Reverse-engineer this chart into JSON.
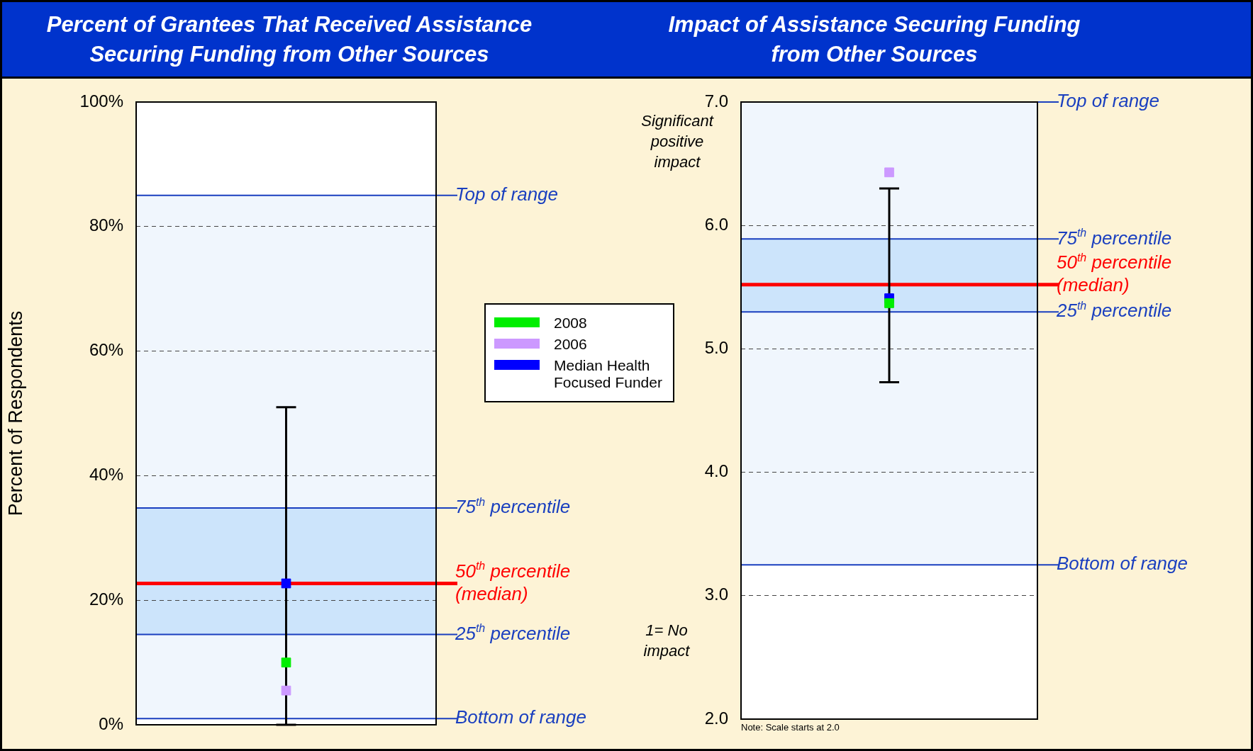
{
  "chart_data": [
    {
      "type": "scatter",
      "title": "Percent of Grantees That Received Assistance Securing Funding from Other Sources",
      "ylabel": "Percent of Respondents",
      "categories": [
        null
      ],
      "series": [
        {
          "type": "scatter",
          "name": "2008",
          "color": "#00ee00",
          "values": [
            10
          ],
          "errors": [
            [
              0,
              51
            ]
          ]
        },
        {
          "type": "scatter",
          "name": "2006",
          "color": "#cc99ff",
          "values": [
            5.5
          ]
        },
        {
          "type": "scatter",
          "name": "Median Health Focused Funder",
          "color": "#0000ff",
          "values": [
            22.7
          ]
        }
      ],
      "bands": [
        {
          "axis": "y",
          "from": 1,
          "to": 85,
          "color": "#f0f6fd"
        },
        {
          "axis": "y",
          "from": 14.5,
          "to": 34.8,
          "color": "#cce4fb"
        }
      ],
      "ref_lines": [
        {
          "axis": "y",
          "value": 85,
          "label": "Top of range",
          "color": "#1a3fbf"
        },
        {
          "axis": "y",
          "value": 34.8,
          "label": "75$^{th}$ percentile",
          "color": "#1a3fbf"
        },
        {
          "axis": "y",
          "value": 22.7,
          "label": "50$^{th}$ percentile (median)",
          "color": "#ff0000"
        },
        {
          "axis": "y",
          "value": 14.5,
          "label": "25$^{th}$ percentile",
          "color": "#1a3fbf"
        },
        {
          "axis": "y",
          "value": 1,
          "label": "Bottom of range",
          "color": "#1a3fbf"
        }
      ],
      "ylim": [
        0,
        100
      ],
      "yticks": [
        {
          "value": 0,
          "label": "0%"
        },
        {
          "value": 20,
          "label": "20%"
        },
        {
          "value": 40,
          "label": "40%"
        },
        {
          "value": 60,
          "label": "60%"
        },
        {
          "value": 80,
          "label": "80%"
        },
        {
          "value": 100,
          "label": "100%"
        }
      ],
      "grid": "y",
      "legend": "right",
      "marker": "square"
    },
    {
      "type": "scatter",
      "title": "Impact of Assistance Securing Funding from Other Sources",
      "categories": [
        null
      ],
      "series": [
        {
          "type": "scatter",
          "color": "#00ee00",
          "values": [
            5.37
          ],
          "errors": [
            [
              4.73,
              6.3
            ]
          ]
        },
        {
          "type": "scatter",
          "color": "#cc99ff",
          "values": [
            6.43
          ]
        },
        {
          "type": "scatter",
          "color": "#0000ff",
          "values": [
            5.41
          ]
        }
      ],
      "bands": [
        {
          "axis": "y",
          "from": 3.25,
          "to": 7.0,
          "color": "#f0f6fd"
        },
        {
          "axis": "y",
          "from": 5.3,
          "to": 5.89,
          "color": "#cce4fb"
        }
      ],
      "ref_lines": [
        {
          "axis": "y",
          "value": 7.0,
          "label": "Top of range",
          "color": "#1a3fbf"
        },
        {
          "axis": "y",
          "value": 5.89,
          "label": "75$^{th}$ percentile",
          "color": "#1a3fbf"
        },
        {
          "axis": "y",
          "value": 5.52,
          "label": "50$^{th}$ percentile (median)",
          "color": "#ff0000"
        },
        {
          "axis": "y",
          "value": 5.3,
          "label": "25$^{th}$ percentile",
          "color": "#1a3fbf"
        },
        {
          "axis": "y",
          "value": 3.25,
          "label": "Bottom of range",
          "color": "#1a3fbf"
        }
      ],
      "ylim": [
        2,
        7
      ],
      "yticks": [
        {
          "value": 2,
          "label": "2.0"
        },
        {
          "value": 3,
          "label": "3.0"
        },
        {
          "value": 4,
          "label": "4.0"
        },
        {
          "value": 5,
          "label": "5.0"
        },
        {
          "value": 6,
          "label": "6.0"
        },
        {
          "value": 7,
          "label": "7.0"
        }
      ],
      "grid": "y",
      "marker": "square",
      "annotations": [
        "Significant positive impact",
        "1= No impact",
        "Note: Scale starts at 2.0"
      ]
    }
  ]
}
